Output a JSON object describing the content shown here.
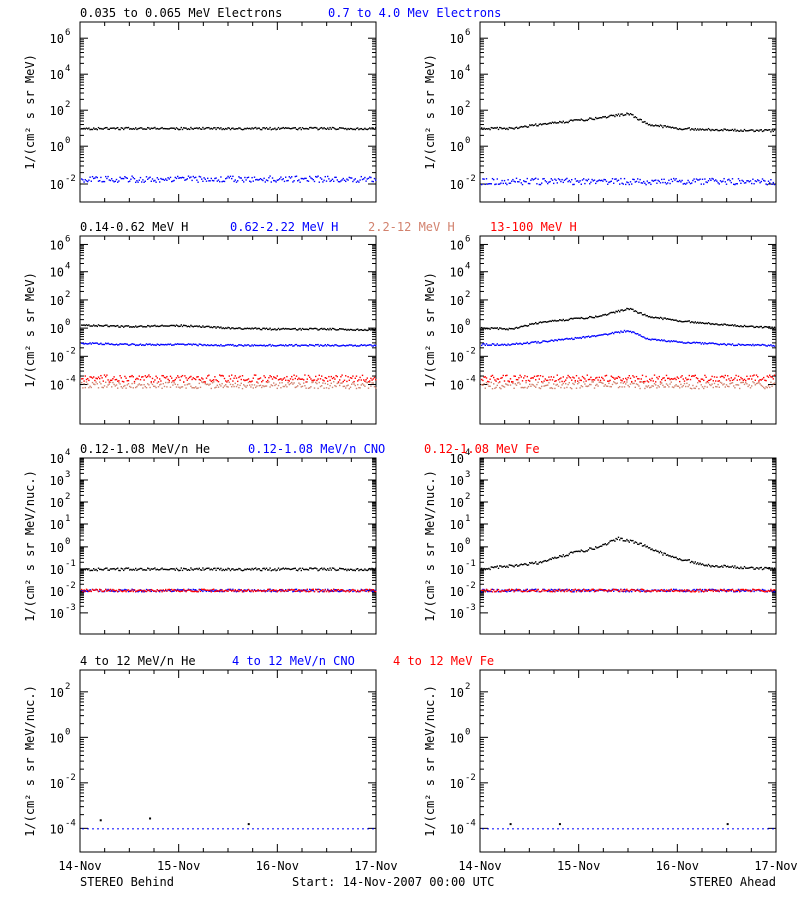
{
  "rows": [
    {
      "labels": [
        {
          "text": "0.035 to 0.065 MeV Electrons",
          "color": "#000000"
        },
        {
          "text": "0.7 to 4.0 Mev Electrons",
          "color": "#0000ff"
        }
      ],
      "ylabel": "1/(cm² s sr MeV)",
      "yticks": [
        {
          "base": "10",
          "exp": "6"
        },
        {
          "base": "10",
          "exp": "4"
        },
        {
          "base": "10",
          "exp": "2"
        },
        {
          "base": "10",
          "exp": "0"
        },
        {
          "base": "10",
          "exp": "-2"
        }
      ]
    },
    {
      "labels": [
        {
          "text": "0.14-0.62 MeV H",
          "color": "#000000"
        },
        {
          "text": "0.62-2.22 MeV H",
          "color": "#0000ff"
        },
        {
          "text": "2.2-12 MeV H",
          "color": "#d2826e"
        },
        {
          "text": "13-100 MeV H",
          "color": "#ff0000"
        }
      ],
      "ylabel": "1/(cm² s sr MeV)",
      "yticks": [
        {
          "base": "10",
          "exp": "6"
        },
        {
          "base": "10",
          "exp": "4"
        },
        {
          "base": "10",
          "exp": "2"
        },
        {
          "base": "10",
          "exp": "0"
        },
        {
          "base": "10",
          "exp": "-2"
        },
        {
          "base": "10",
          "exp": "-4"
        }
      ]
    },
    {
      "labels": [
        {
          "text": "0.12-1.08 MeV/n He",
          "color": "#000000"
        },
        {
          "text": "0.12-1.08 MeV/n CNO",
          "color": "#0000ff"
        },
        {
          "text": "0.12-1.08 MeV Fe",
          "color": "#ff0000"
        }
      ],
      "ylabel": "1/(cm² s sr MeV/nuc.)",
      "yticks": [
        {
          "base": "10",
          "exp": "4"
        },
        {
          "base": "10",
          "exp": "3"
        },
        {
          "base": "10",
          "exp": "2"
        },
        {
          "base": "10",
          "exp": "1"
        },
        {
          "base": "10",
          "exp": "0"
        },
        {
          "base": "10",
          "exp": "-1"
        },
        {
          "base": "10",
          "exp": "-2"
        },
        {
          "base": "10",
          "exp": "-3"
        }
      ]
    },
    {
      "labels": [
        {
          "text": "4 to 12 MeV/n He",
          "color": "#000000"
        },
        {
          "text": "4 to 12 MeV/n CNO",
          "color": "#0000ff"
        },
        {
          "text": "4 to 12 MeV Fe",
          "color": "#ff0000"
        }
      ],
      "ylabel": "1/(cm² s sr MeV/nuc.)",
      "yticks": [
        {
          "base": "10",
          "exp": "2"
        },
        {
          "base": "10",
          "exp": "0"
        },
        {
          "base": "10",
          "exp": "-2"
        },
        {
          "base": "10",
          "exp": "-4"
        }
      ]
    }
  ],
  "footer": {
    "left": "STEREO Behind",
    "center": "Start: 14-Nov-2007 00:00 UTC",
    "right": "STEREO Ahead"
  },
  "chart_data": [
    {
      "type": "scatter",
      "panel": "STEREO Behind",
      "x_axis": "time",
      "xticks": [
        "14-Nov",
        "15-Nov",
        "16-Nov",
        "17-Nov"
      ],
      "xlim_days": [
        0,
        3
      ],
      "yscale": "log",
      "ylim": [
        0.003,
        4000000
      ],
      "ylabel": "1/(cm² s sr MeV)",
      "series": [
        {
          "name": "0.035 to 0.065 MeV Electrons",
          "color": "#000000",
          "points": [
            [
              0,
              12
            ],
            [
              0.5,
              12
            ],
            [
              1,
              12
            ],
            [
              1.5,
              12
            ],
            [
              2,
              12
            ],
            [
              2.5,
              12
            ],
            [
              3,
              12
            ]
          ]
        },
        {
          "name": "0.7 to 4.0 Mev Electrons",
          "color": "#0000ff",
          "points": [
            [
              0,
              0.02
            ],
            [
              0.5,
              0.02
            ],
            [
              1,
              0.02
            ],
            [
              1.5,
              0.02
            ],
            [
              2,
              0.02
            ],
            [
              2.5,
              0.02
            ],
            [
              3,
              0.02
            ]
          ]
        }
      ]
    },
    {
      "type": "scatter",
      "panel": "STEREO Ahead",
      "x_axis": "time",
      "xticks": [
        "14-Nov",
        "15-Nov",
        "16-Nov",
        "17-Nov"
      ],
      "xlim_days": [
        0,
        3
      ],
      "yscale": "log",
      "ylim": [
        0.003,
        4000000
      ],
      "ylabel": "1/(cm² s sr MeV)",
      "series": [
        {
          "name": "0.035 to 0.065 MeV Electrons",
          "color": "#000000",
          "points": [
            [
              0,
              12
            ],
            [
              0.3,
              12
            ],
            [
              0.6,
              20
            ],
            [
              0.9,
              30
            ],
            [
              1.2,
              45
            ],
            [
              1.5,
              80
            ],
            [
              1.7,
              20
            ],
            [
              2,
              12
            ],
            [
              2.5,
              10
            ],
            [
              3,
              9
            ]
          ]
        },
        {
          "name": "0.7 to 4.0 Mev Electrons",
          "color": "#0000ff",
          "points": [
            [
              0,
              0.015
            ],
            [
              0.5,
              0.015
            ],
            [
              1,
              0.015
            ],
            [
              1.5,
              0.015
            ],
            [
              2,
              0.015
            ],
            [
              2.5,
              0.015
            ],
            [
              3,
              0.015
            ]
          ]
        }
      ]
    },
    {
      "type": "scatter",
      "panel": "STEREO Behind",
      "x_axis": "time",
      "xticks": [
        "14-Nov",
        "15-Nov",
        "16-Nov",
        "17-Nov"
      ],
      "xlim_days": [
        0,
        3
      ],
      "yscale": "log",
      "ylim": [
        3e-05,
        4000000
      ],
      "ylabel": "1/(cm² s sr MeV)",
      "series": [
        {
          "name": "0.14-0.62 MeV H",
          "color": "#000000",
          "points": [
            [
              0,
              2
            ],
            [
              0.5,
              1.5
            ],
            [
              1,
              1.8
            ],
            [
              1.5,
              1.2
            ],
            [
              2,
              1
            ],
            [
              2.5,
              1
            ],
            [
              3,
              0.9
            ]
          ]
        },
        {
          "name": "0.62-2.22 MeV H",
          "color": "#0000ff",
          "points": [
            [
              0,
              0.1
            ],
            [
              0.5,
              0.08
            ],
            [
              1,
              0.08
            ],
            [
              1.5,
              0.07
            ],
            [
              2,
              0.07
            ],
            [
              2.5,
              0.07
            ],
            [
              3,
              0.07
            ]
          ]
        },
        {
          "name": "2.2-12 MeV H",
          "color": "#d2826e",
          "points": [
            [
              0,
              0.0001
            ],
            [
              1,
              0.0001
            ],
            [
              2,
              0.0001
            ],
            [
              3,
              0.0001
            ]
          ]
        },
        {
          "name": "13-100 MeV H",
          "color": "#ff0000",
          "points": [
            [
              0,
              0.0003
            ],
            [
              1,
              0.0003
            ],
            [
              2,
              0.0003
            ],
            [
              3,
              0.0003
            ]
          ]
        }
      ]
    },
    {
      "type": "scatter",
      "panel": "STEREO Ahead",
      "x_axis": "time",
      "xticks": [
        "14-Nov",
        "15-Nov",
        "16-Nov",
        "17-Nov"
      ],
      "xlim_days": [
        0,
        3
      ],
      "yscale": "log",
      "ylim": [
        3e-05,
        4000000
      ],
      "ylabel": "1/(cm² s sr MeV)",
      "series": [
        {
          "name": "0.14-0.62 MeV H",
          "color": "#000000",
          "points": [
            [
              0,
              1.2
            ],
            [
              0.3,
              1
            ],
            [
              0.6,
              3
            ],
            [
              0.9,
              5
            ],
            [
              1.2,
              8
            ],
            [
              1.5,
              30
            ],
            [
              1.7,
              8
            ],
            [
              2,
              4
            ],
            [
              2.5,
              2
            ],
            [
              3,
              1.2
            ]
          ]
        },
        {
          "name": "0.62-2.22 MeV H",
          "color": "#0000ff",
          "points": [
            [
              0,
              0.08
            ],
            [
              0.3,
              0.08
            ],
            [
              0.6,
              0.12
            ],
            [
              0.9,
              0.2
            ],
            [
              1.2,
              0.35
            ],
            [
              1.5,
              0.8
            ],
            [
              1.7,
              0.2
            ],
            [
              2,
              0.12
            ],
            [
              2.5,
              0.08
            ],
            [
              3,
              0.07
            ]
          ]
        },
        {
          "name": "2.2-12 MeV H",
          "color": "#d2826e",
          "points": [
            [
              0,
              0.0001
            ],
            [
              1,
              0.0001
            ],
            [
              2,
              0.0001
            ],
            [
              3,
              0.0001
            ]
          ]
        },
        {
          "name": "13-100 MeV H",
          "color": "#ff0000",
          "points": [
            [
              0,
              0.0003
            ],
            [
              1,
              0.0003
            ],
            [
              2,
              0.0003
            ],
            [
              3,
              0.0003
            ]
          ]
        }
      ]
    },
    {
      "type": "scatter",
      "panel": "STEREO Behind",
      "x_axis": "time",
      "xticks": [
        "14-Nov",
        "15-Nov",
        "16-Nov",
        "17-Nov"
      ],
      "xlim_days": [
        0,
        3
      ],
      "yscale": "log",
      "ylim": [
        0.0005,
        10000
      ],
      "ylabel": "1/(cm² s sr MeV/nuc.)",
      "series": [
        {
          "name": "0.12-1.08 MeV/n He",
          "color": "#000000",
          "points": [
            [
              0,
              0.1
            ],
            [
              1,
              0.1
            ],
            [
              2,
              0.1
            ],
            [
              3,
              0.1
            ]
          ]
        },
        {
          "name": "0.12-1.08 MeV/n CNO",
          "color": "#0000ff",
          "points": [
            [
              0,
              0.011
            ],
            [
              1,
              0.011
            ],
            [
              2,
              0.011
            ],
            [
              3,
              0.011
            ]
          ]
        },
        {
          "name": "0.12-1.08 MeV Fe",
          "color": "#ff0000",
          "points": [
            [
              0,
              0.011
            ],
            [
              1,
              0.011
            ],
            [
              2,
              0.011
            ],
            [
              3,
              0.011
            ]
          ]
        }
      ]
    },
    {
      "type": "scatter",
      "panel": "STEREO Ahead",
      "x_axis": "time",
      "xticks": [
        "14-Nov",
        "15-Nov",
        "16-Nov",
        "17-Nov"
      ],
      "xlim_days": [
        0,
        3
      ],
      "yscale": "log",
      "ylim": [
        0.0005,
        10000
      ],
      "ylabel": "1/(cm² s sr MeV/nuc.)",
      "series": [
        {
          "name": "0.12-1.08 MeV/n He",
          "color": "#000000",
          "points": [
            [
              0,
              0.1
            ],
            [
              0.6,
              0.2
            ],
            [
              0.9,
              0.5
            ],
            [
              1.2,
              1
            ],
            [
              1.4,
              2.5
            ],
            [
              1.6,
              1.5
            ],
            [
              1.9,
              0.4
            ],
            [
              2.3,
              0.15
            ],
            [
              3,
              0.1
            ]
          ]
        },
        {
          "name": "0.12-1.08 MeV/n CNO",
          "color": "#0000ff",
          "points": [
            [
              0,
              0.011
            ],
            [
              1,
              0.011
            ],
            [
              2,
              0.011
            ],
            [
              3,
              0.011
            ]
          ]
        },
        {
          "name": "0.12-1.08 MeV Fe",
          "color": "#ff0000",
          "points": [
            [
              0,
              0.011
            ],
            [
              1,
              0.011
            ],
            [
              2,
              0.011
            ],
            [
              3,
              0.011
            ]
          ]
        }
      ]
    },
    {
      "type": "scatter",
      "panel": "STEREO Behind",
      "x_axis": "time",
      "xticks": [
        "14-Nov",
        "15-Nov",
        "16-Nov",
        "17-Nov"
      ],
      "xlim_days": [
        0,
        3
      ],
      "yscale": "log",
      "ylim": [
        2e-06,
        10000
      ],
      "ylabel": "1/(cm² s sr MeV/nuc.)",
      "series": [
        {
          "name": "4 to 12 MeV/n He",
          "color": "#000000",
          "points": [
            [
              0.2,
              0.00025
            ],
            [
              0.7,
              0.0003
            ],
            [
              1.7,
              0.00017
            ]
          ]
        },
        {
          "name": "4 to 12 MeV/n CNO",
          "color": "#0000ff",
          "points": [
            [
              0,
              0.0001
            ],
            [
              1,
              0.0001
            ],
            [
              2,
              0.0001
            ],
            [
              3,
              0.0001
            ]
          ]
        }
      ]
    },
    {
      "type": "scatter",
      "panel": "STEREO Ahead",
      "x_axis": "time",
      "xticks": [
        "14-Nov",
        "15-Nov",
        "16-Nov",
        "17-Nov"
      ],
      "xlim_days": [
        0,
        3
      ],
      "yscale": "log",
      "ylim": [
        2e-06,
        10000
      ],
      "ylabel": "1/(cm² s sr MeV/nuc.)",
      "series": [
        {
          "name": "4 to 12 MeV/n He",
          "color": "#000000",
          "points": [
            [
              0.3,
              0.00017
            ],
            [
              0.8,
              0.00017
            ],
            [
              2.5,
              0.00017
            ]
          ]
        },
        {
          "name": "4 to 12 MeV/n CNO",
          "color": "#0000ff",
          "points": [
            [
              0,
              0.0001
            ],
            [
              1,
              0.0001
            ],
            [
              2,
              0.0001
            ],
            [
              3,
              0.0001
            ]
          ]
        }
      ]
    }
  ]
}
